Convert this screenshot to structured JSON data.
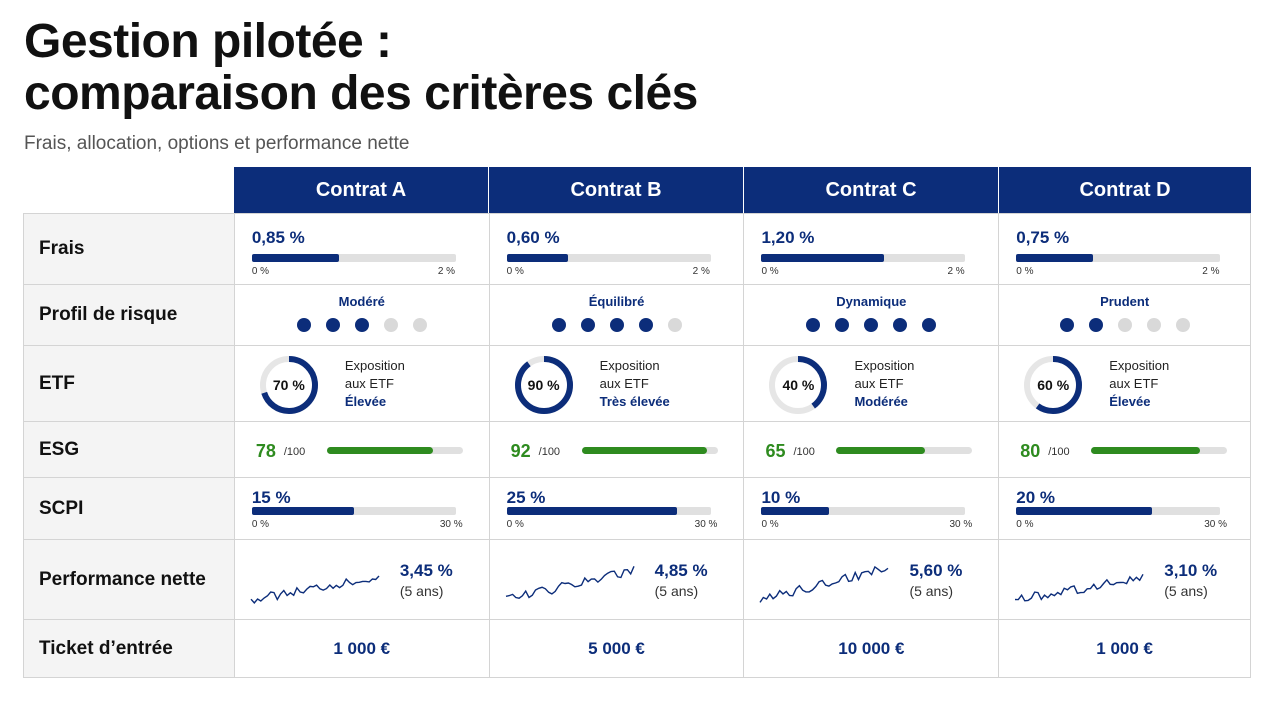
{
  "header": {
    "title_line1": "Gestion pilotée :",
    "title_line2": "comparaison des critères clés",
    "subtitle": "Frais, allocation, options et performance nette"
  },
  "columns": [
    "Contrat A",
    "Contrat B",
    "Contrat C",
    "Contrat D"
  ],
  "rows": {
    "frais": {
      "label": "Frais",
      "min_label": "0 %",
      "max_label": "2 %",
      "max": 2,
      "values": [
        {
          "text": "0,85 %",
          "value": 0.85
        },
        {
          "text": "0,60 %",
          "value": 0.6
        },
        {
          "text": "1,20 %",
          "value": 1.2
        },
        {
          "text": "0,75 %",
          "value": 0.75
        }
      ]
    },
    "risk": {
      "label": "Profil de risque",
      "scale": 5,
      "values": [
        {
          "text": "Modéré",
          "level": 3
        },
        {
          "text": "Équilibré",
          "level": 4
        },
        {
          "text": "Dynamique",
          "level": 5
        },
        {
          "text": "Prudent",
          "level": 2
        }
      ]
    },
    "etf": {
      "label": "ETF",
      "line1": "Exposition",
      "line2": "aux ETF",
      "values": [
        {
          "text": "70 %",
          "value": 70,
          "level": "Élevée"
        },
        {
          "text": "90 %",
          "value": 90,
          "level": "Très élevée"
        },
        {
          "text": "40 %",
          "value": 40,
          "level": "Modérée"
        },
        {
          "text": "60 %",
          "value": 60,
          "level": "Élevée"
        }
      ]
    },
    "esg": {
      "label": "ESG",
      "suffix": "/100",
      "max": 100,
      "values": [
        {
          "text": "78",
          "value": 78
        },
        {
          "text": "92",
          "value": 92
        },
        {
          "text": "65",
          "value": 65
        },
        {
          "text": "80",
          "value": 80
        }
      ]
    },
    "scpi": {
      "label": "SCPI",
      "min_label": "0 %",
      "max_label": "30 %",
      "max": 30,
      "values": [
        {
          "text": "15 %",
          "value": 15
        },
        {
          "text": "25 %",
          "value": 25
        },
        {
          "text": "10 %",
          "value": 10
        },
        {
          "text": "20 %",
          "value": 20
        }
      ]
    },
    "perf": {
      "label": "Performance nette",
      "period": "(5 ans)",
      "values": [
        {
          "text": "3,45 %",
          "value": 3.45
        },
        {
          "text": "4,85 %",
          "value": 4.85
        },
        {
          "text": "5,60 %",
          "value": 5.6
        },
        {
          "text": "3,10 %",
          "value": 3.1
        }
      ]
    },
    "ticket": {
      "label": "Ticket d’entrée",
      "values": [
        "1 000 €",
        "5 000 €",
        "10 000 €",
        "1 000 €"
      ]
    }
  },
  "colors": {
    "navy": "#0c2d7a",
    "green": "#2e8b1f",
    "track": "#e0e0e0"
  }
}
